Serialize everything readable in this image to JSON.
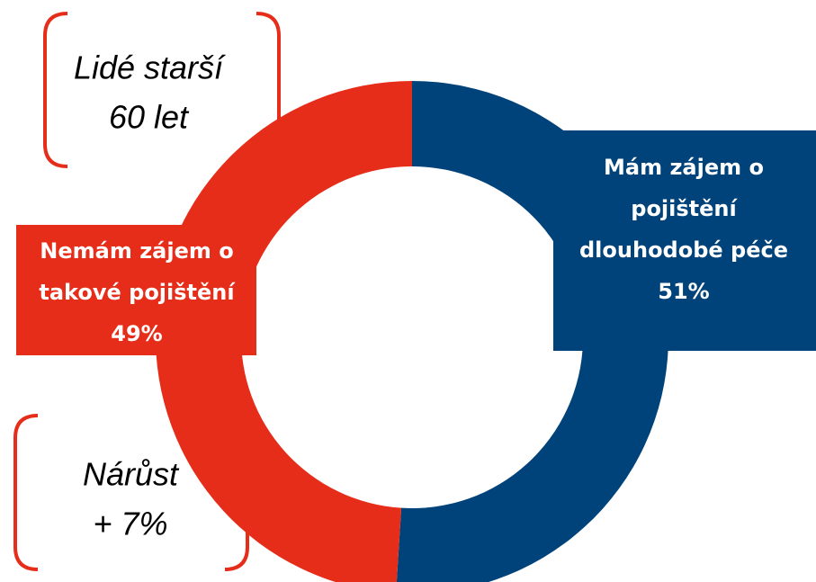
{
  "chart_data": {
    "type": "pie",
    "categories": [
      [
        "Mám zájem o",
        "pojištění",
        "dlouhodobé péče"
      ],
      [
        "Nemám zájem o",
        "takové pojištění"
      ]
    ],
    "values": [
      51,
      49
    ],
    "value_labels": [
      "51%",
      "49%"
    ],
    "colors": [
      "#00427a",
      "#e62d19"
    ],
    "donut": true,
    "annotations": [
      [
        "Lidé starší",
        "60 let"
      ],
      [
        "Nárůst",
        "+ 7%"
      ]
    ]
  }
}
